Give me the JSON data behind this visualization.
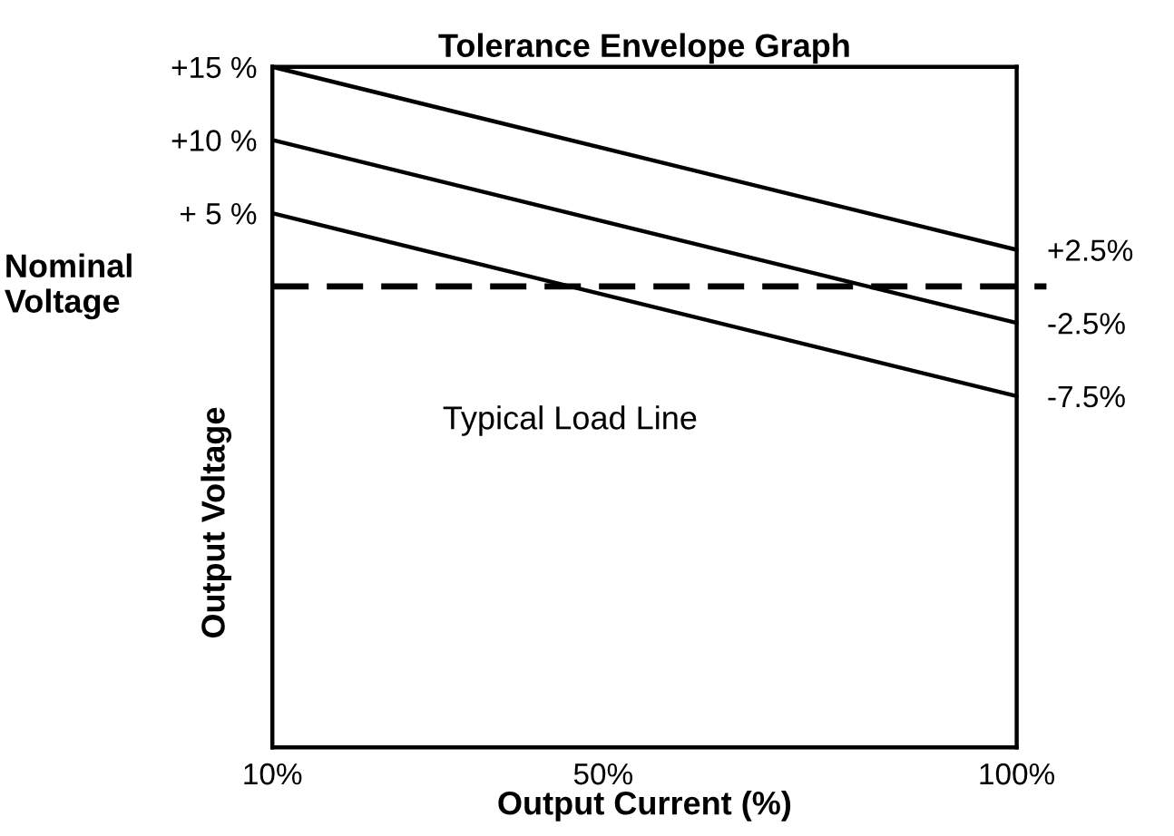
{
  "chart_data": {
    "type": "line",
    "title": "Tolerance Envelope Graph",
    "xlabel": "Output Current (%)",
    "ylabel": "Output Voltage",
    "xlim": [
      10,
      100
    ],
    "xticks": [
      {
        "value": 10,
        "label": "10%"
      },
      {
        "value": 50,
        "label": "50%"
      },
      {
        "value": 100,
        "label": "100%"
      }
    ],
    "ylim": [
      -31.5,
      15
    ],
    "yticks": [
      {
        "value": 15,
        "label": "+15 %"
      },
      {
        "value": 10,
        "label": "+10 %"
      },
      {
        "value": 5,
        "label": "+ 5 %"
      }
    ],
    "y2lim": [
      -31.5,
      15
    ],
    "y2ticks": [
      {
        "value": 2.5,
        "label": "+2.5%"
      },
      {
        "value": -2.5,
        "label": "-2.5%"
      },
      {
        "value": -7.5,
        "label": "-7.5%"
      }
    ],
    "x": [
      10,
      100
    ],
    "series": [
      {
        "color": "#000000",
        "values": [
          15,
          2.5
        ]
      },
      {
        "color": "#000000",
        "values": [
          10,
          -2.5
        ]
      },
      {
        "color": "#000000",
        "values": [
          5,
          -7.5
        ]
      }
    ],
    "ref_lines": [
      {
        "axis": "y",
        "value": 0,
        "label": "Nominal\nVoltage",
        "color": "#000000",
        "line_style": "dashed"
      }
    ],
    "annotations": [
      "Typical Load Line"
    ],
    "line_style": "solid",
    "grid": false
  }
}
